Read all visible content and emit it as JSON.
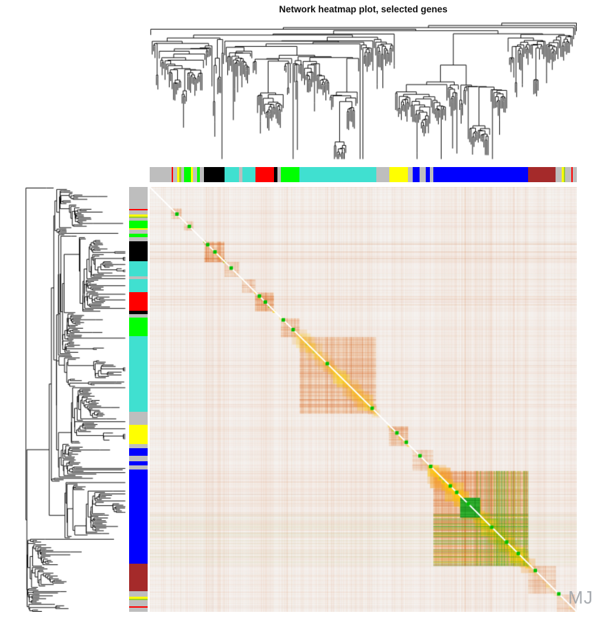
{
  "watermark": "MJ",
  "chart_data": {
    "type": "heatmap",
    "title": "Network heatmap plot, selected genes",
    "background": "#f5f2ef",
    "heat_palette": {
      "low": "#FFFFFF",
      "mid": "#E06E2C",
      "high": "#FFE000",
      "strong": "#00C000",
      "diagonal": "#FFFFFF"
    },
    "module_segments": [
      {
        "name": "grey",
        "color": "#BEBEBE",
        "weight": 30
      },
      {
        "name": "red",
        "color": "#FF0000",
        "weight": 2
      },
      {
        "name": "grey",
        "color": "#BEBEBE",
        "weight": 6
      },
      {
        "name": "yellow",
        "color": "#FFFF00",
        "weight": 3
      },
      {
        "name": "greenyellow",
        "color": "#9ACD32",
        "weight": 2
      },
      {
        "name": "grey",
        "color": "#BEBEBE",
        "weight": 4
      },
      {
        "name": "green",
        "color": "#00FF00",
        "weight": 10
      },
      {
        "name": "yellow",
        "color": "#FFFF00",
        "weight": 2
      },
      {
        "name": "grey",
        "color": "#BEBEBE",
        "weight": 6
      },
      {
        "name": "green",
        "color": "#00FF00",
        "weight": 4
      },
      {
        "name": "grey",
        "color": "#BEBEBE",
        "weight": 6
      },
      {
        "name": "black",
        "color": "#000000",
        "weight": 28
      },
      {
        "name": "turquoise",
        "color": "#40E0D0",
        "weight": 20
      },
      {
        "name": "grey",
        "color": "#BEBEBE",
        "weight": 4
      },
      {
        "name": "turquoise",
        "color": "#40E0D0",
        "weight": 18
      },
      {
        "name": "red",
        "color": "#FF0000",
        "weight": 26
      },
      {
        "name": "black",
        "color": "#000000",
        "weight": 5
      },
      {
        "name": "grey",
        "color": "#BEBEBE",
        "weight": 4
      },
      {
        "name": "green",
        "color": "#00FF00",
        "weight": 26
      },
      {
        "name": "turquoise",
        "color": "#40E0D0",
        "weight": 105
      },
      {
        "name": "grey",
        "color": "#BEBEBE",
        "weight": 18
      },
      {
        "name": "yellow",
        "color": "#FFFF00",
        "weight": 26
      },
      {
        "name": "grey",
        "color": "#BEBEBE",
        "weight": 6
      },
      {
        "name": "blue",
        "color": "#0000FF",
        "weight": 10
      },
      {
        "name": "grey",
        "color": "#BEBEBE",
        "weight": 8
      },
      {
        "name": "blue",
        "color": "#0000FF",
        "weight": 6
      },
      {
        "name": "grey",
        "color": "#BEBEBE",
        "weight": 5
      },
      {
        "name": "blue",
        "color": "#0000FF",
        "weight": 130
      },
      {
        "name": "brown",
        "color": "#A52A2A",
        "weight": 38
      },
      {
        "name": "grey",
        "color": "#BEBEBE",
        "weight": 8
      },
      {
        "name": "yellow",
        "color": "#FFFF00",
        "weight": 3
      },
      {
        "name": "greenyellow",
        "color": "#9ACD32",
        "weight": 2
      },
      {
        "name": "grey",
        "color": "#BEBEBE",
        "weight": 8
      },
      {
        "name": "red",
        "color": "#FF0000",
        "weight": 2
      },
      {
        "name": "grey",
        "color": "#BEBEBE",
        "weight": 6
      }
    ],
    "diagonal_blocks": [
      {
        "start": 0.05,
        "end": 0.075,
        "intensity": 0.35,
        "core": false,
        "green_corner": false
      },
      {
        "start": 0.08,
        "end": 0.102,
        "intensity": 0.35,
        "core": false,
        "green_corner": false
      },
      {
        "start": 0.128,
        "end": 0.175,
        "intensity": 0.9,
        "core": true,
        "green_corner": false
      },
      {
        "start": 0.175,
        "end": 0.21,
        "intensity": 0.35,
        "core": false,
        "green_corner": false
      },
      {
        "start": 0.216,
        "end": 0.247,
        "intensity": 0.4,
        "core": false,
        "green_corner": false
      },
      {
        "start": 0.247,
        "end": 0.291,
        "intensity": 0.9,
        "core": true,
        "green_corner": false
      },
      {
        "start": 0.307,
        "end": 0.351,
        "intensity": 0.5,
        "core": false,
        "green_corner": false
      },
      {
        "start": 0.351,
        "end": 0.53,
        "intensity": 0.55,
        "core": true,
        "green_corner": false
      },
      {
        "start": 0.56,
        "end": 0.605,
        "intensity": 0.55,
        "core": true,
        "green_corner": false
      },
      {
        "start": 0.615,
        "end": 0.664,
        "intensity": 0.3,
        "core": false,
        "green_corner": false
      },
      {
        "start": 0.664,
        "end": 0.886,
        "intensity": 0.85,
        "core": true,
        "green_corner": true
      },
      {
        "start": 0.886,
        "end": 0.951,
        "intensity": 0.35,
        "core": false,
        "green_corner": false
      },
      {
        "start": 0.953,
        "end": 0.995,
        "intensity": 0.25,
        "core": false,
        "green_corner": false
      }
    ],
    "green_block": {
      "start": 0.727,
      "end": 0.773,
      "color": "#2FAE2F"
    },
    "green_dots": [
      0.063,
      0.092,
      0.135,
      0.152,
      0.19,
      0.256,
      0.27,
      0.312,
      0.335,
      0.415,
      0.52,
      0.578,
      0.6,
      0.632,
      0.657,
      0.703,
      0.718,
      0.745,
      0.8,
      0.835,
      0.862,
      0.902,
      0.957
    ],
    "dendrogram": {
      "top_leaves": 300,
      "left_leaves": 300,
      "line_color": "#000000"
    }
  }
}
